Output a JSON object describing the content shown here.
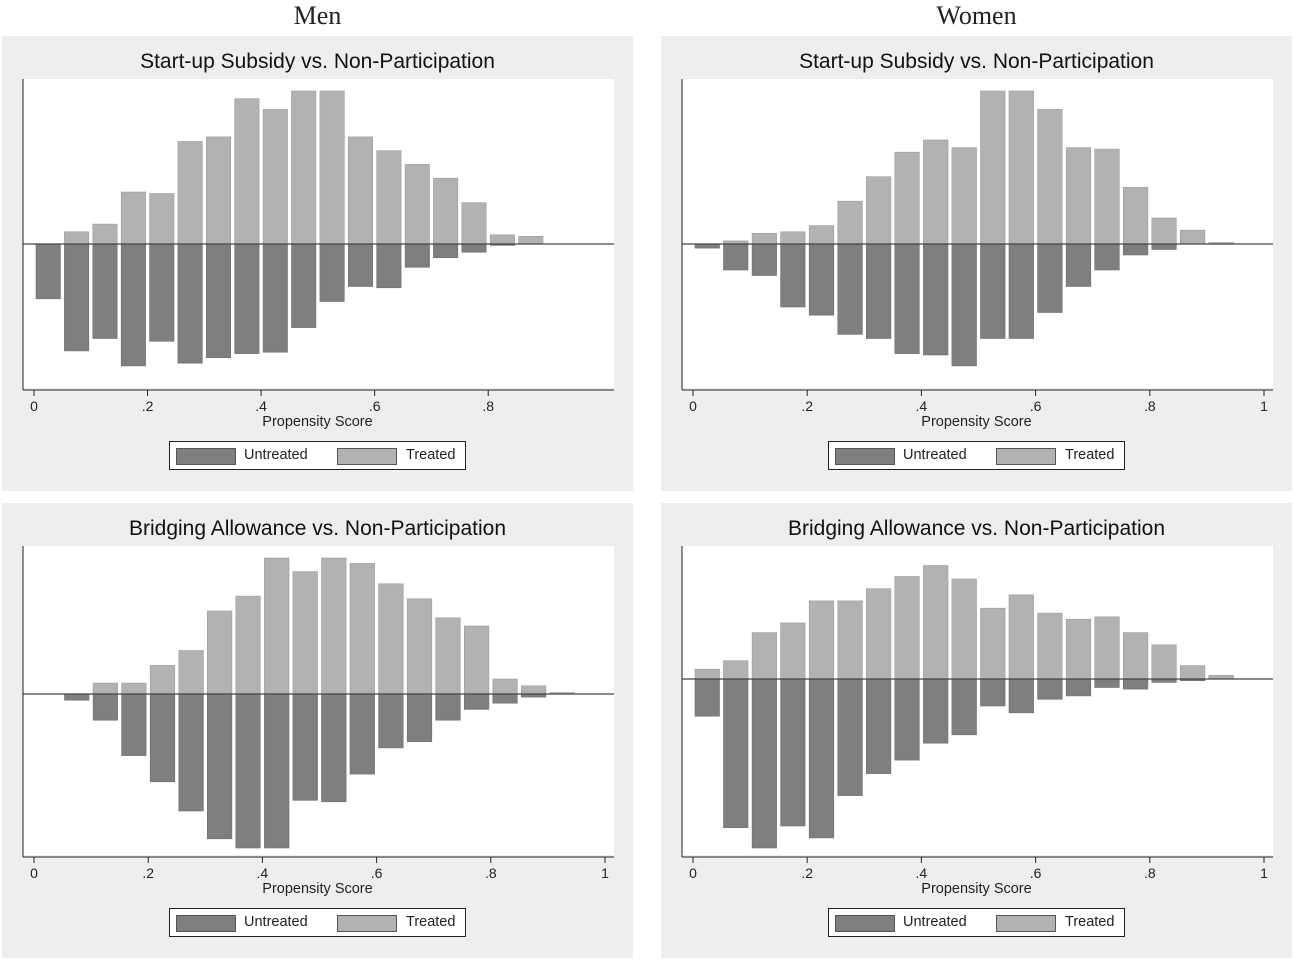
{
  "column_titles": [
    "Men",
    "Women"
  ],
  "legend": {
    "untreated": "Untreated",
    "treated": "Treated"
  },
  "colors": {
    "untreated": "#7f7f7f",
    "treated": "#b2b2b2",
    "panel_bg": "#eeeeee",
    "plot_bg": "#ffffff"
  },
  "chart_data": [
    {
      "type": "bar",
      "panel": "Men",
      "title": "Start-up Subsidy vs. Non-Participation",
      "xlabel": "Propensity Score",
      "xticks": [
        "0",
        ".2",
        ".4",
        ".6",
        ".8"
      ],
      "xlim": [
        0,
        0.9
      ],
      "bin_width": 0.05,
      "x": [
        0.025,
        0.075,
        0.125,
        0.175,
        0.225,
        0.275,
        0.325,
        0.375,
        0.425,
        0.475,
        0.525,
        0.575,
        0.625,
        0.675,
        0.725,
        0.775,
        0.825,
        0.875
      ],
      "series": [
        {
          "name": "Treated",
          "values": [
            0,
            0.08,
            0.13,
            0.34,
            0.33,
            0.67,
            0.7,
            0.95,
            0.88,
            1.0,
            1.0,
            0.7,
            0.61,
            0.52,
            0.43,
            0.27,
            0.06,
            0.05
          ]
        },
        {
          "name": "Untreated",
          "values": [
            -0.4,
            -0.78,
            -0.69,
            -0.89,
            -0.71,
            -0.87,
            -0.83,
            -0.8,
            -0.79,
            -0.61,
            -0.42,
            -0.31,
            -0.32,
            -0.17,
            -0.1,
            -0.06,
            -0.01,
            0
          ]
        }
      ]
    },
    {
      "type": "bar",
      "panel": "Women",
      "title": "Start-up Subsidy vs. Non-Participation",
      "xlabel": "Propensity Score",
      "xticks": [
        "0",
        ".2",
        ".4",
        ".6",
        ".8",
        "1"
      ],
      "xlim": [
        0,
        1
      ],
      "bin_width": 0.05,
      "x": [
        0.025,
        0.075,
        0.125,
        0.175,
        0.225,
        0.275,
        0.325,
        0.375,
        0.425,
        0.475,
        0.525,
        0.575,
        0.625,
        0.675,
        0.725,
        0.775,
        0.825,
        0.875,
        0.925,
        0.975
      ],
      "series": [
        {
          "name": "Treated",
          "values": [
            0,
            0.02,
            0.07,
            0.08,
            0.12,
            0.28,
            0.44,
            0.6,
            0.68,
            0.63,
            1.0,
            1.0,
            0.88,
            0.63,
            0.62,
            0.37,
            0.17,
            0.09,
            0.01,
            0
          ]
        },
        {
          "name": "Untreated",
          "values": [
            -0.03,
            -0.19,
            -0.23,
            -0.46,
            -0.52,
            -0.66,
            -0.69,
            -0.8,
            -0.81,
            -0.89,
            -0.69,
            -0.69,
            -0.5,
            -0.31,
            -0.19,
            -0.08,
            -0.04,
            0,
            0,
            0
          ]
        }
      ]
    },
    {
      "type": "bar",
      "panel": "Men",
      "title": "Bridging Allowance vs. Non-Participation",
      "xlabel": "Propensity Score",
      "xticks": [
        "0",
        ".2",
        ".4",
        ".6",
        ".8",
        "1"
      ],
      "xlim": [
        0,
        1
      ],
      "bin_width": 0.05,
      "x": [
        0.025,
        0.075,
        0.125,
        0.175,
        0.225,
        0.275,
        0.325,
        0.375,
        0.425,
        0.475,
        0.525,
        0.575,
        0.625,
        0.675,
        0.725,
        0.775,
        0.825,
        0.875,
        0.925,
        0.975
      ],
      "series": [
        {
          "name": "Treated",
          "values": [
            0,
            0,
            0.08,
            0.08,
            0.21,
            0.32,
            0.61,
            0.72,
            1.0,
            0.9,
            1.0,
            0.96,
            0.81,
            0.7,
            0.56,
            0.5,
            0.11,
            0.06,
            0.01,
            0
          ]
        },
        {
          "name": "Untreated",
          "values": [
            0,
            -0.04,
            -0.17,
            -0.4,
            -0.57,
            -0.76,
            -0.94,
            -1.0,
            -1.0,
            -0.69,
            -0.7,
            -0.52,
            -0.35,
            -0.31,
            -0.17,
            -0.1,
            -0.06,
            -0.02,
            0,
            0
          ]
        }
      ]
    },
    {
      "type": "bar",
      "panel": "Women",
      "title": "Bridging Allowance vs. Non-Participation",
      "xlabel": "Propensity Score",
      "xticks": [
        "0",
        ".2",
        ".4",
        ".6",
        ".8",
        "1"
      ],
      "xlim": [
        0,
        1
      ],
      "bin_width": 0.05,
      "x": [
        0.025,
        0.075,
        0.125,
        0.175,
        0.225,
        0.275,
        0.325,
        0.375,
        0.425,
        0.475,
        0.525,
        0.575,
        0.625,
        0.675,
        0.725,
        0.775,
        0.825,
        0.875,
        0.925,
        0.975
      ],
      "series": [
        {
          "name": "Treated",
          "values": [
            0.08,
            0.15,
            0.38,
            0.46,
            0.64,
            0.64,
            0.74,
            0.84,
            0.93,
            0.82,
            0.58,
            0.69,
            0.54,
            0.49,
            0.51,
            0.38,
            0.28,
            0.11,
            0.03,
            0
          ]
        },
        {
          "name": "Untreated",
          "values": [
            -0.22,
            -0.88,
            -1.0,
            -0.87,
            -0.94,
            -0.69,
            -0.56,
            -0.48,
            -0.38,
            -0.33,
            -0.16,
            -0.2,
            -0.12,
            -0.1,
            -0.05,
            -0.06,
            -0.02,
            -0.01,
            0,
            0
          ]
        }
      ]
    }
  ]
}
